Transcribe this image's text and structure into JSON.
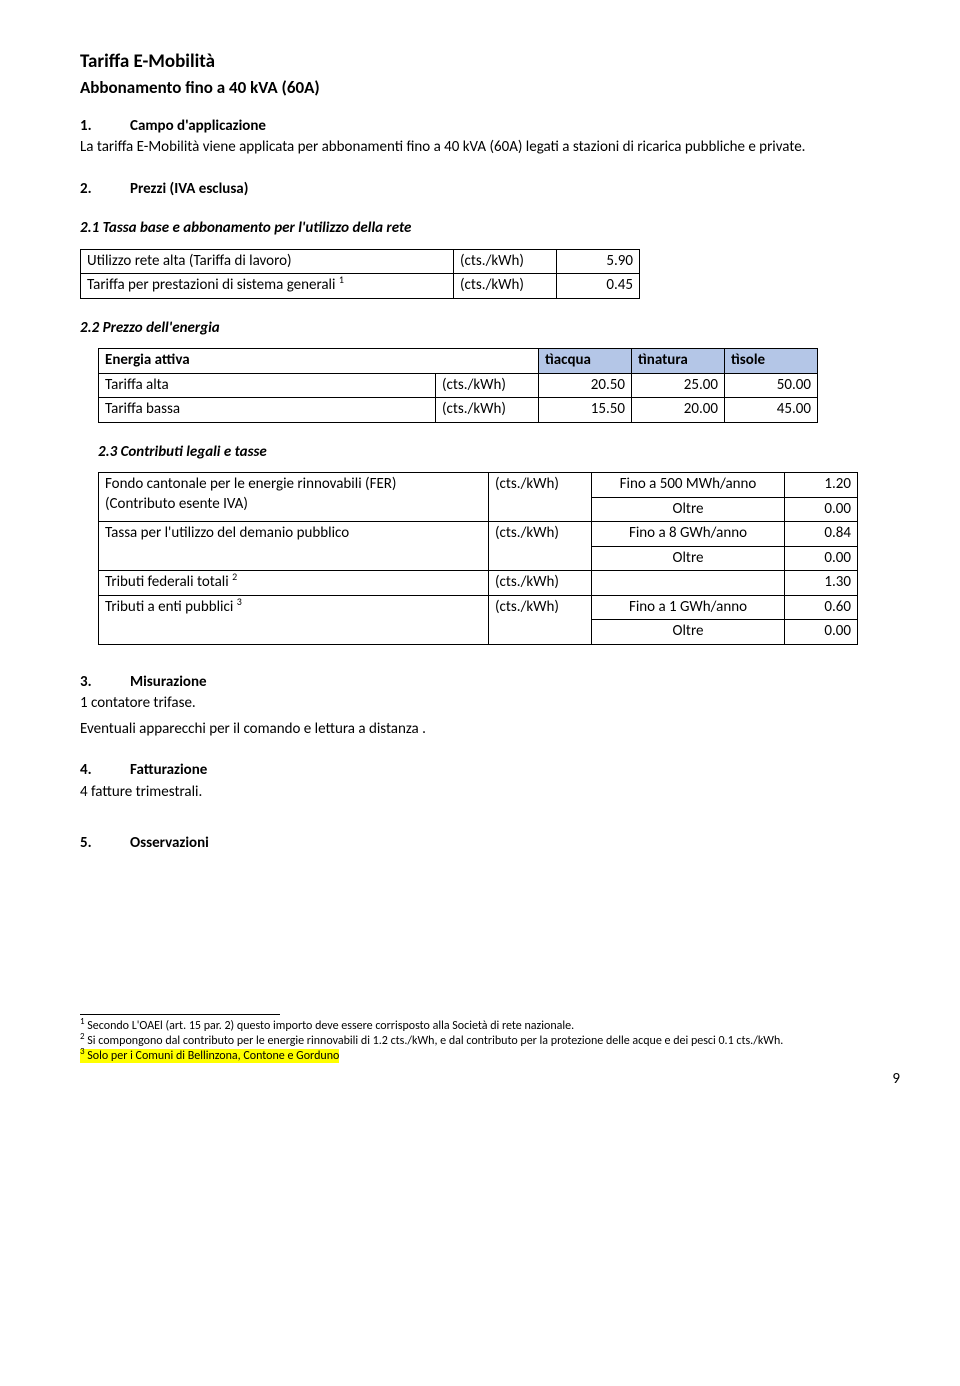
{
  "header": {
    "title_main": "Tariffa E-Mobilità",
    "title_sub": "Abbonamento fino a 40 kVA (60A)"
  },
  "section1": {
    "num": "1.",
    "label": "Campo d'applicazione",
    "text": "La tariffa E-Mobilità viene applicata per abbonamenti fino a 40 kVA (60A) legati a stazioni di ricarica pubbliche e private."
  },
  "section2": {
    "num": "2.",
    "label": "Prezzi (IVA esclusa)",
    "sub1": {
      "title": "2.1 Tassa base e abbonamento per l'utilizzo della rete",
      "rows": [
        {
          "label": "Utilizzo rete alta (Tariffa di lavoro)",
          "unit": "(cts./kWh)",
          "val": "5.90",
          "sup": ""
        },
        {
          "label": "Tariffa per prestazioni di sistema generali",
          "unit": "(cts./kWh)",
          "val": "0.45",
          "sup": "1"
        }
      ]
    },
    "sub2": {
      "title": "2.2 Prezzo dell'energia",
      "header_label": "Energia attiva",
      "cols": [
        "tìacqua",
        "tìnatura",
        "tìsole"
      ],
      "rows": [
        {
          "label": "Tariffa alta",
          "unit": "(cts./kWh)",
          "vals": [
            "20.50",
            "25.00",
            "50.00"
          ]
        },
        {
          "label": "Tariffa bassa",
          "unit": "(cts./kWh)",
          "vals": [
            "15.50",
            "20.00",
            "45.00"
          ]
        }
      ]
    },
    "sub3": {
      "title": "2.3 Contributi legali e tasse",
      "rows": [
        {
          "label": "Fondo cantonale per le energie rinnovabili (FER)\n(Contributo esente IVA)",
          "sup": "",
          "unit": "(cts./kWh)",
          "conds": [
            "Fino a 500 MWh/anno",
            "Oltre"
          ],
          "vals": [
            "1.20",
            "0.00"
          ]
        },
        {
          "label": "Tassa per l'utilizzo del demanio pubblico",
          "sup": "",
          "unit": "(cts./kWh)",
          "conds": [
            "Fino a 8 GWh/anno",
            "Oltre"
          ],
          "vals": [
            "0.84",
            "0.00"
          ]
        },
        {
          "label": "Tributi federali totali",
          "sup": "2",
          "unit": "(cts./kWh)",
          "conds": [
            ""
          ],
          "vals": [
            "1.30"
          ]
        },
        {
          "label": "Tributi a enti pubblici",
          "sup": "3",
          "unit": "(cts./kWh)",
          "conds": [
            "Fino a 1 GWh/anno",
            "Oltre"
          ],
          "vals": [
            "0.60",
            "0.00"
          ]
        }
      ]
    }
  },
  "section3": {
    "num": "3.",
    "label": "Misurazione",
    "line1": "1 contatore trifase.",
    "line2": "Eventuali apparecchi per il comando e lettura a distanza ."
  },
  "section4": {
    "num": "4.",
    "label": "Fatturazione",
    "line1": "4 fatture trimestrali."
  },
  "section5": {
    "num": "5.",
    "label": "Osservazioni"
  },
  "footnotes": {
    "f1": " Secondo L'OAEl (art. 15 par. 2) questo importo deve essere corrisposto alla Società di rete nazionale.",
    "f2": " Si compongono dal contributo per le energie rinnovabili di 1.2 cts./kWh, e dal contributo per la protezione delle acque e dei pesci 0.1 cts./kWh.",
    "f3": " Solo per i Comuni di Bellinzona, Contone e Gorduno"
  },
  "page_number": "9"
}
